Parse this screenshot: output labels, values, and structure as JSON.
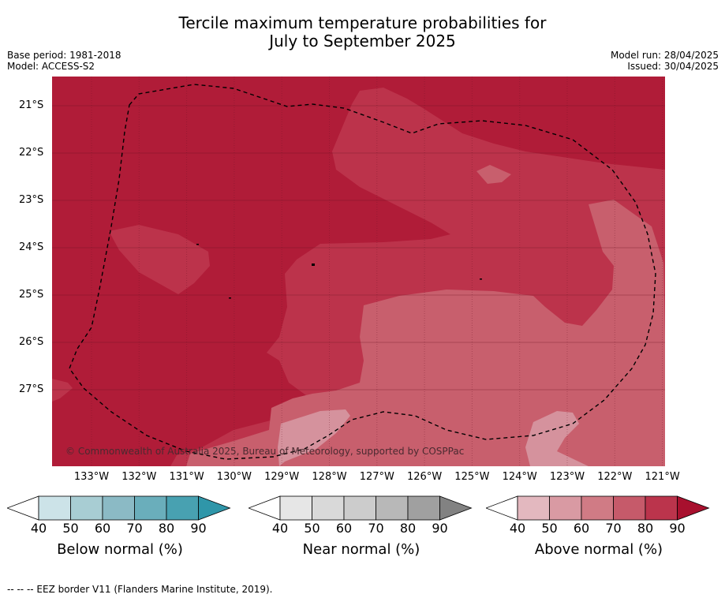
{
  "title": {
    "line1": "Tercile maximum temperature probabilities for",
    "line2": "July to September 2025"
  },
  "meta_left": {
    "base_period": "Base period: 1981-2018",
    "model": "Model: ACCESS-S2"
  },
  "meta_right": {
    "model_run": "Model run: 28/04/2025",
    "issued": "Issued: 30/04/2025"
  },
  "map": {
    "lat_labels": [
      "21°S",
      "22°S",
      "23°S",
      "24°S",
      "25°S",
      "26°S",
      "27°S"
    ],
    "lon_labels": [
      "133°W",
      "132°W",
      "131°W",
      "130°W",
      "129°W",
      "128°W",
      "127°W",
      "126°W",
      "125°W",
      "124°W",
      "123°W",
      "122°W",
      "121°W"
    ],
    "copyright": "© Commonwealth of Australia 2025, Bureau of Meteorology, supported by COSPPac",
    "colors": {
      "above_90": "#b01c38",
      "above_80": "#bc334b",
      "above_70": "#c85f6d",
      "above_60": "#d5929d",
      "eez_border": "#000000"
    }
  },
  "colorbars": [
    {
      "label": "Below normal (%)",
      "ticks": [
        "40",
        "50",
        "60",
        "70",
        "80",
        "90"
      ],
      "colors": [
        "#ffffff",
        "#cce3e8",
        "#a8cdd3",
        "#8bbac5",
        "#6aaebb",
        "#48a1b1",
        "#2f96a9"
      ]
    },
    {
      "label": "Near normal (%)",
      "ticks": [
        "40",
        "50",
        "60",
        "70",
        "80",
        "90"
      ],
      "colors": [
        "#ffffff",
        "#e6e6e6",
        "#d9d9d9",
        "#cccccc",
        "#b8b8b8",
        "#a0a0a0",
        "#828282"
      ]
    },
    {
      "label": "Above normal (%)",
      "ticks": [
        "40",
        "50",
        "60",
        "70",
        "80",
        "90"
      ],
      "colors": [
        "#ffffff",
        "#e3b8bf",
        "#d99aa3",
        "#d07b85",
        "#c65a6a",
        "#bb344c",
        "#a8102e"
      ]
    }
  ],
  "legend_note": "--  --  -- EEZ border V11 (Flanders Marine Institute, 2019)."
}
